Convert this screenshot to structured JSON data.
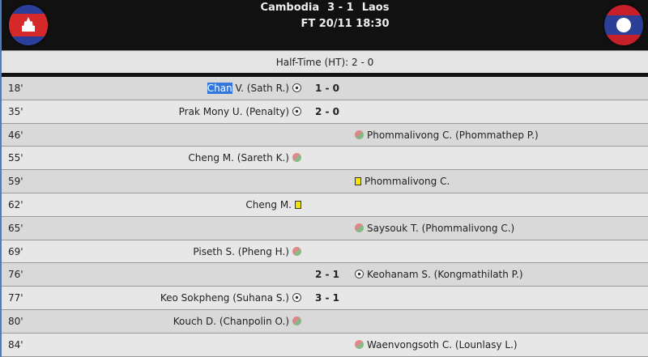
{
  "match": {
    "home": "Cambodia",
    "away": "Laos",
    "score": "3 - 1",
    "status": "FT 20/11 18:30",
    "half_time": "Half-Time (HT): 2 - 0"
  },
  "colors": {
    "header_bg": "#111111",
    "row_odd": "#d9d9d9",
    "row_even": "#e7e7e7",
    "yellow_card": "#f2e600"
  },
  "events": [
    {
      "minute": "18'",
      "side": "home",
      "type": "goal",
      "player_sel": "Chan",
      "player": " V. (Sath R.)",
      "score": "1 - 0"
    },
    {
      "minute": "35'",
      "side": "home",
      "type": "goal",
      "player": "Prak Mony U. (Penalty)",
      "score": "2 - 0"
    },
    {
      "minute": "46'",
      "side": "away",
      "type": "substitution",
      "player": "Phommalivong C. (Phommathep P.)"
    },
    {
      "minute": "55'",
      "side": "home",
      "type": "substitution",
      "player": "Cheng M. (Sareth K.)"
    },
    {
      "minute": "59'",
      "side": "away",
      "type": "yellow-card",
      "player": "Phommalivong C."
    },
    {
      "minute": "62'",
      "side": "home",
      "type": "yellow-card",
      "player": "Cheng M."
    },
    {
      "minute": "65'",
      "side": "away",
      "type": "substitution",
      "player": "Saysouk T. (Phommalivong C.)"
    },
    {
      "minute": "69'",
      "side": "home",
      "type": "substitution",
      "player": "Piseth S. (Pheng H.)"
    },
    {
      "minute": "76'",
      "side": "away",
      "type": "goal",
      "player": "Keohanam S. (Kongmathilath P.)",
      "score": "2 - 1"
    },
    {
      "minute": "77'",
      "side": "home",
      "type": "goal",
      "player": "Keo Sokpheng (Suhana S.)",
      "score": "3 - 1"
    },
    {
      "minute": "80'",
      "side": "home",
      "type": "substitution",
      "player": "Kouch D. (Chanpolin O.)"
    },
    {
      "minute": "84'",
      "side": "away",
      "type": "substitution",
      "player": "Waenvongsoth C. (Lounlasy L.)"
    }
  ]
}
